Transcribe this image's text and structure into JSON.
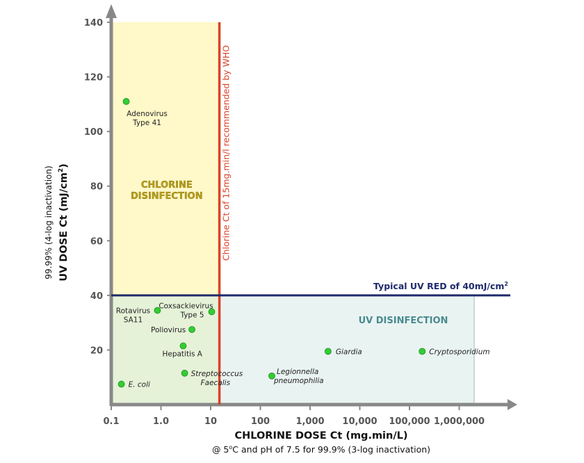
{
  "chart_data": {
    "type": "scatter",
    "xscale": "log",
    "xlim": [
      0.1,
      10000000
    ],
    "ylim": [
      0,
      140
    ],
    "x_ticks": [
      {
        "value": 0.1,
        "label": "0.1"
      },
      {
        "value": 1,
        "label": "1.0"
      },
      {
        "value": 10,
        "label": "10"
      },
      {
        "value": 100,
        "label": "100"
      },
      {
        "value": 1000,
        "label": "1,000"
      },
      {
        "value": 10000,
        "label": "10,000"
      },
      {
        "value": 100000,
        "label": "100,000"
      },
      {
        "value": 1000000,
        "label": "1,000,000"
      }
    ],
    "y_ticks": [
      {
        "value": 20,
        "label": "20"
      },
      {
        "value": 40,
        "label": "40"
      },
      {
        "value": 60,
        "label": "60"
      },
      {
        "value": 80,
        "label": "80"
      },
      {
        "value": 100,
        "label": "100"
      },
      {
        "value": 120,
        "label": "120"
      },
      {
        "value": 140,
        "label": "140"
      }
    ],
    "xlabel": "CHLORINE DOSE Ct (mg.min/L)",
    "xlabel_sub": {
      "prefix": "@ 5",
      "sup": "o",
      "suffix": "C and pH of 7.5 for 99.9% (3-log inactivation)"
    },
    "ylabel": {
      "main": "UV DOSE Ct (mJ/cm",
      "sup": "2",
      "close": ")",
      "sub": "99.99% (4-log inactivation)"
    },
    "points": [
      {
        "lines": [
          "Adenovirus",
          "Type 41"
        ],
        "x": 0.2,
        "y": 111,
        "italic": false
      },
      {
        "lines": [
          "Rotavirus",
          "SA11"
        ],
        "x": 0.85,
        "y": 34.5,
        "italic": false
      },
      {
        "lines": [
          "Coxsackievirus",
          "Type 5"
        ],
        "x": 10.5,
        "y": 34,
        "italic": false
      },
      {
        "lines": [
          "Poliovirus"
        ],
        "x": 4.2,
        "y": 27.5,
        "italic": false
      },
      {
        "lines": [
          "Hepatitis A"
        ],
        "x": 2.8,
        "y": 21.5,
        "italic": false
      },
      {
        "lines": [
          "Streptococcus",
          "Faecalis"
        ],
        "x": 3,
        "y": 11.5,
        "italic": true
      },
      {
        "lines": [
          "E. coli"
        ],
        "x": 0.16,
        "y": 7.5,
        "italic": true
      },
      {
        "lines": [
          "Legionnella",
          "pneumophilia"
        ],
        "x": 170,
        "y": 10.5,
        "italic": true
      },
      {
        "lines": [
          "Giardia"
        ],
        "x": 2300,
        "y": 19.5,
        "italic": true
      },
      {
        "lines": [
          "Cryptosporidium"
        ],
        "x": 180000,
        "y": 19.5,
        "italic": true
      }
    ],
    "reference_lines": {
      "chlorine_x": 15,
      "chlorine_label": "Chlorine Ct of 15mg.min/l recommended by WHO",
      "uv_y": 40,
      "uv_label_main": "Typical UV RED of 40mJ/cm",
      "uv_label_sup": "2"
    },
    "regions": {
      "chlorine": {
        "lines": [
          "CHLORINE",
          "DISINFECTION"
        ],
        "x_max": 15,
        "y_min": 40,
        "y_max": 140
      },
      "uv": {
        "label": "UV DISINFECTION",
        "x_max": 2000000,
        "y_min": 0,
        "y_max": 40
      },
      "both": {
        "x_max": 15,
        "y_min": 0,
        "y_max": 40
      }
    },
    "colors": {
      "chlorine_fill": "#fff8c8",
      "uv_fill": "#e9f3f2",
      "both_fill": "#e6f2d8",
      "chlorine_line": "#d9432a",
      "uv_line": "#1f2a6b",
      "chlorine_label_text": "#d9432a",
      "chlorine_region_text": "#b8a01a",
      "uv_region_text": "#4a8a8e",
      "uv_label_text": "#1f2a6b",
      "point": "#33cc33",
      "axis": "#888888"
    }
  }
}
